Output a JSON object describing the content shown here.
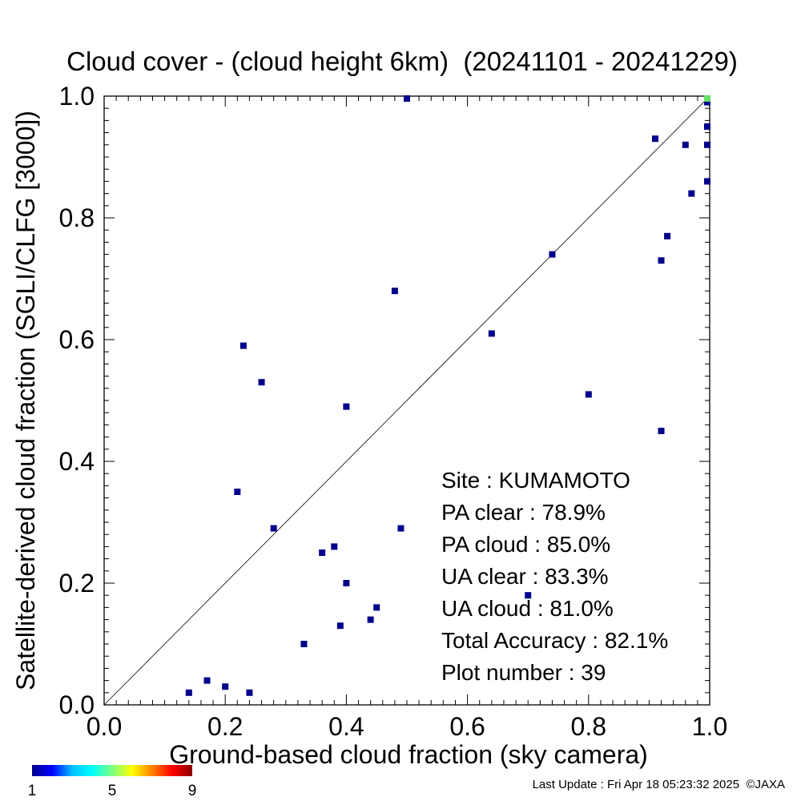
{
  "chart_data": {
    "type": "scatter",
    "title": "Cloud cover - (cloud height 6km)  (20241101 - 20241229)",
    "xlabel": "Ground-based cloud fraction (sky camera)",
    "ylabel": "Satellite-derived cloud fraction (SGLI/CLFG [3000])",
    "xlim": [
      0.0,
      1.0
    ],
    "ylim": [
      0.0,
      1.0
    ],
    "x_ticks": [
      "0.0",
      "0.2",
      "0.4",
      "0.6",
      "0.8",
      "1.0"
    ],
    "y_ticks": [
      "0.0",
      "0.2",
      "0.4",
      "0.6",
      "0.8",
      "1.0"
    ],
    "grid": false,
    "reference_line": "y = x",
    "point_color": "#00008b",
    "overlap_color": "#66dd66",
    "points": [
      {
        "x": 0.5,
        "y": 1.0
      },
      {
        "x": 1.0,
        "y": 0.99
      },
      {
        "x": 1.0,
        "y": 0.95
      },
      {
        "x": 1.0,
        "y": 0.92
      },
      {
        "x": 0.91,
        "y": 0.93
      },
      {
        "x": 0.96,
        "y": 0.92
      },
      {
        "x": 1.0,
        "y": 0.86
      },
      {
        "x": 0.97,
        "y": 0.84
      },
      {
        "x": 0.93,
        "y": 0.77
      },
      {
        "x": 0.92,
        "y": 0.73
      },
      {
        "x": 0.74,
        "y": 0.74
      },
      {
        "x": 0.48,
        "y": 0.68
      },
      {
        "x": 0.64,
        "y": 0.61
      },
      {
        "x": 0.23,
        "y": 0.59
      },
      {
        "x": 0.26,
        "y": 0.53
      },
      {
        "x": 0.8,
        "y": 0.51
      },
      {
        "x": 0.4,
        "y": 0.49
      },
      {
        "x": 0.92,
        "y": 0.45
      },
      {
        "x": 0.22,
        "y": 0.35
      },
      {
        "x": 0.28,
        "y": 0.29
      },
      {
        "x": 0.49,
        "y": 0.29
      },
      {
        "x": 0.38,
        "y": 0.26
      },
      {
        "x": 0.36,
        "y": 0.25
      },
      {
        "x": 0.4,
        "y": 0.2
      },
      {
        "x": 0.7,
        "y": 0.18
      },
      {
        "x": 0.45,
        "y": 0.16
      },
      {
        "x": 0.44,
        "y": 0.14
      },
      {
        "x": 0.39,
        "y": 0.13
      },
      {
        "x": 0.33,
        "y": 0.1
      },
      {
        "x": 0.17,
        "y": 0.04
      },
      {
        "x": 0.2,
        "y": 0.03
      },
      {
        "x": 0.14,
        "y": 0.02
      },
      {
        "x": 0.24,
        "y": 0.02
      },
      {
        "x": 1.0,
        "y": 1.0
      }
    ],
    "stats": [
      {
        "label": "Site : KUMAMOTO"
      },
      {
        "label": "PA clear :  78.9%"
      },
      {
        "label": "PA cloud :  85.0%"
      },
      {
        "label": "UA clear :  83.3%"
      },
      {
        "label": "UA cloud :  81.0%"
      },
      {
        "label": "Total Accuracy :  82.1%"
      },
      {
        "label": "Plot number :        39"
      }
    ],
    "colorbar": {
      "ticks": [
        "1",
        "5",
        "9"
      ],
      "colors": [
        "#00008b",
        "#0000ff",
        "#00bfff",
        "#00ffff",
        "#7fff7f",
        "#ffff00",
        "#ff8000",
        "#ff0000",
        "#8b0000"
      ]
    }
  },
  "footer": {
    "last_update": "Last Update : Fri Apr 18 05:23:32 2025  ©JAXA"
  }
}
